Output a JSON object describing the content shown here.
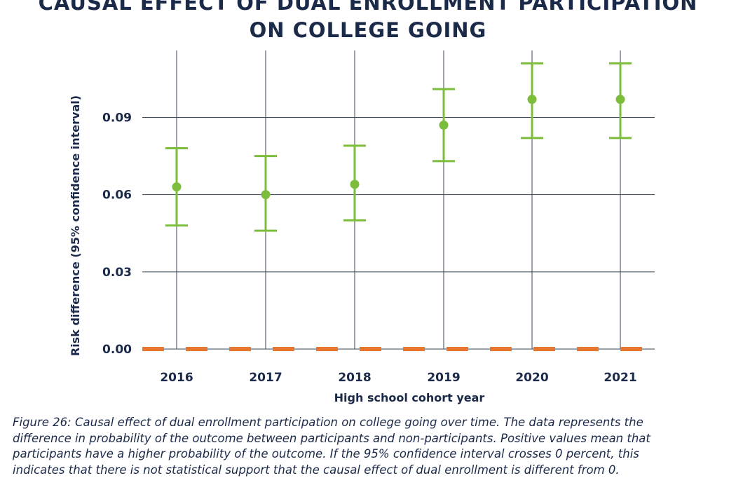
{
  "chart_data": {
    "type": "scatter",
    "title_lines": [
      "CAUSAL EFFECT OF DUAL ENROLLMENT PARTICIPATION",
      "ON COLLEGE GOING"
    ],
    "xlabel": "High school cohort year",
    "ylabel": "Risk difference (95% confidence interval)",
    "categories": [
      "2016",
      "2017",
      "2018",
      "2019",
      "2020",
      "2021"
    ],
    "values": [
      0.063,
      0.06,
      0.064,
      0.087,
      0.097,
      0.097
    ],
    "ci_lower": [
      0.048,
      0.046,
      0.05,
      0.073,
      0.082,
      0.082
    ],
    "ci_upper": [
      0.078,
      0.075,
      0.079,
      0.101,
      0.111,
      0.111
    ],
    "y_ticks": [
      "0.00",
      "0.03",
      "0.06",
      "0.09"
    ],
    "y_tick_values": [
      0,
      0.03,
      0.06,
      0.09
    ],
    "ylim": [
      0,
      0.116
    ],
    "reference_line": 0,
    "grid": true,
    "colors": {
      "points": "#7cbd3b",
      "reference": "#e8762d",
      "grid": "#3a4558",
      "text": "#1c2a4a"
    }
  },
  "caption_lines": [
    "Figure 26: Causal effect of dual enrollment participation on college going over time. The data represents the",
    "difference in probability of the outcome between participants and non-participants. Positive values mean that",
    "participants have a higher probability of the outcome. If the 95% confidence interval crosses 0 percent, this",
    "indicates that there is not statistical support that the causal effect of dual enrollment is different from 0."
  ]
}
